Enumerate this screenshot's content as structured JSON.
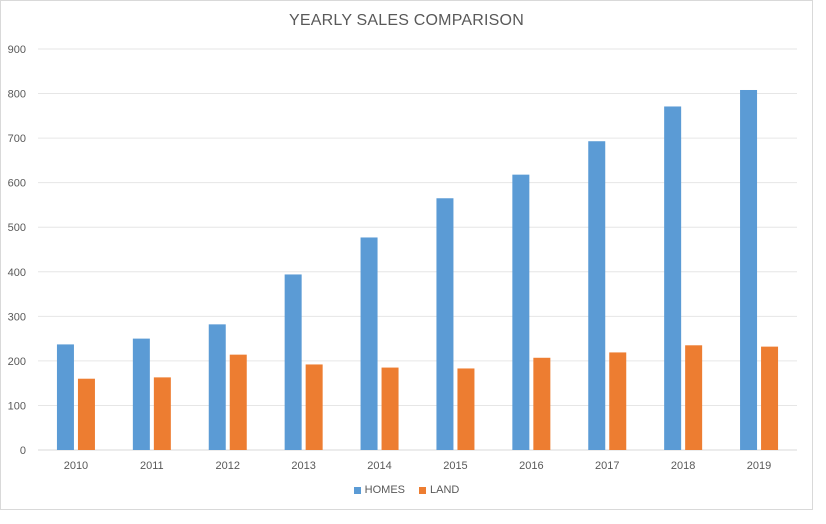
{
  "chart_data": {
    "type": "bar",
    "title": "YEARLY SALES COMPARISON",
    "categories": [
      "2010",
      "2011",
      "2012",
      "2013",
      "2014",
      "2015",
      "2016",
      "2017",
      "2018",
      "2019"
    ],
    "series": [
      {
        "name": "HOMES",
        "color": "#5b9bd5",
        "values": [
          237,
          250,
          282,
          394,
          477,
          565,
          618,
          693,
          771,
          808
        ]
      },
      {
        "name": "LAND",
        "color": "#ed7d31",
        "values": [
          160,
          163,
          214,
          192,
          185,
          183,
          207,
          219,
          235,
          232
        ]
      }
    ],
    "ylim": [
      0,
      900
    ],
    "yticks": [
      "0",
      "100",
      "200",
      "300",
      "400",
      "500",
      "600",
      "700",
      "800",
      "900"
    ],
    "grid": true,
    "legend": "bottom"
  }
}
